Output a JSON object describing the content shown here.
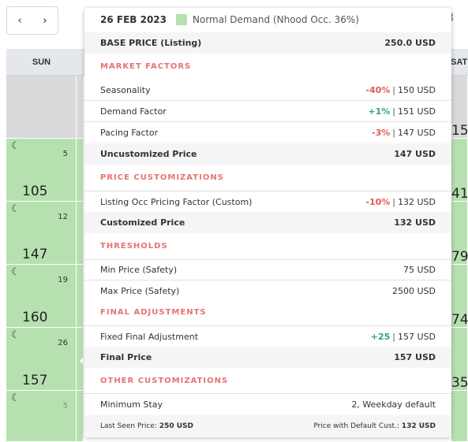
{
  "nav": {
    "prev": "‹",
    "next": "›"
  },
  "partial_date": "8",
  "calendar": {
    "days": [
      "SUN",
      "",
      "",
      "",
      "",
      "",
      "SAT"
    ],
    "rows": [
      {
        "sun_num": "",
        "sun_price": "",
        "sat_price": "15",
        "past": true
      },
      {
        "sun_num": "5",
        "sun_price": "105",
        "sat_price": "41",
        "past": false
      },
      {
        "sun_num": "12",
        "sun_price": "147",
        "sat_price": "79",
        "past": false
      },
      {
        "sun_num": "19",
        "sun_price": "160",
        "sat_price": "74",
        "past": false
      },
      {
        "sun_num": "26",
        "sun_price": "157",
        "sat_price": "35",
        "past": false
      },
      {
        "sun_num": "5",
        "sun_price": "",
        "sat_price": "",
        "past": false,
        "faded": true
      }
    ],
    "colors": {
      "available": "#b7e0b1",
      "past": "#d9d9d9",
      "header": "#e4e7eb"
    }
  },
  "tooltip": {
    "date": "26 FEB 2023",
    "legend": "Normal Demand (Nhood Occ. 36%)",
    "base": {
      "label": "BASE PRICE (Listing)",
      "value": "250.0 USD"
    },
    "market_title": "MARKET FACTORS",
    "seasonality": {
      "label": "Seasonality",
      "pct": "-40%",
      "value": "150 USD"
    },
    "demand": {
      "label": "Demand Factor",
      "pct": "+1%",
      "value": "151 USD"
    },
    "pacing": {
      "label": "Pacing Factor",
      "pct": "-3%",
      "value": "147 USD"
    },
    "uncustomized": {
      "label": "Uncustomized Price",
      "value": "147 USD"
    },
    "custom_title": "PRICE CUSTOMIZATIONS",
    "occ_factor": {
      "label": "Listing Occ Pricing Factor (Custom)",
      "pct": "-10%",
      "value": "132 USD"
    },
    "customized": {
      "label": "Customized Price",
      "value": "132 USD"
    },
    "thresholds_title": "THRESHOLDS",
    "min_price": {
      "label": "Min Price (Safety)",
      "value": "75 USD"
    },
    "max_price": {
      "label": "Max Price (Safety)",
      "value": "2500 USD"
    },
    "final_title": "FINAL ADJUSTMENTS",
    "fixed_final": {
      "label": "Fixed Final Adjustment",
      "pct": "+25",
      "value": "157 USD"
    },
    "final": {
      "label": "Final Price",
      "value": "157 USD"
    },
    "other_title": "OTHER CUSTOMIZATIONS",
    "min_stay": {
      "label": "Minimum Stay",
      "value": "2, Weekday default"
    },
    "footer": {
      "last_seen_label": "Last Seen Price:",
      "last_seen_value": "250 USD",
      "default_cust_label": "Price with Default Cust.:",
      "default_cust_value": "132 USD"
    },
    "sep": "|",
    "colors": {
      "negative": "#e05c5c",
      "positive": "#3aa56a",
      "section": "#e57373"
    }
  }
}
